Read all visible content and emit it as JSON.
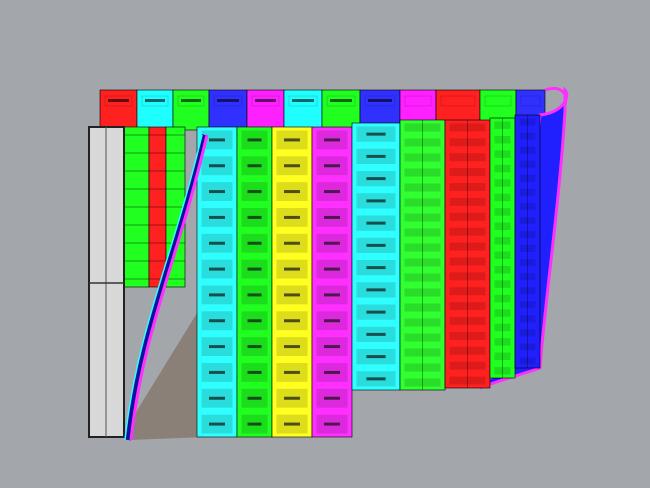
{
  "viewport": {
    "background": "#a3a7ac",
    "back_row_colors": [
      "#ff2020",
      "#20ffff",
      "#20ff20",
      "#3030ff",
      "#ff20ff",
      "#20ffff",
      "#20ff20",
      "#3030ff",
      "#ff20ff",
      "#ff2020",
      "#20ff20",
      "#3030ff"
    ],
    "front_column_colors": [
      "#30ffff",
      "#20ff20",
      "#ffff20",
      "#ff30ff",
      "#30ffff",
      "#30ff30",
      "#ff2020",
      "#20ff20",
      "#2020ff"
    ],
    "left_strip_colors": [
      "#20ff20",
      "#ff2020",
      "#20ff20"
    ],
    "frame_color": "#d8d8d8",
    "shadow_color": "#8a8078"
  }
}
